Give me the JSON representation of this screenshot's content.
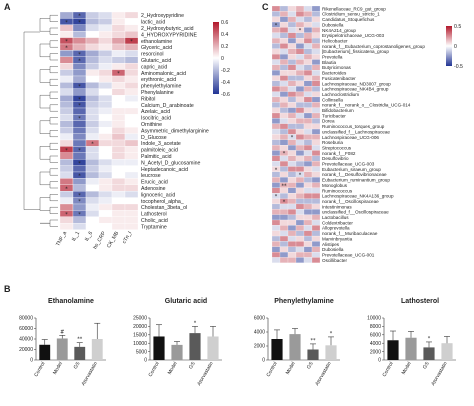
{
  "panels": {
    "a": "A",
    "b": "B",
    "c": "C"
  },
  "panel_a": {
    "rows": [
      "2_Hydroxypyridine",
      "lactic_acid",
      "2_Hydroxybutyric_acid",
      "4_HYDROXYPYRIDINE",
      "ethanolamine",
      "Glyceric_acid",
      "resorcinol",
      "Glutaric_acid",
      "capric_acid",
      "Aminomalonic_acid",
      "erythronic_acid",
      "phenylethylamine",
      "Phenylalanine",
      "Ribitol",
      "Calcium_D_arabinoate",
      "Azelaic_acid",
      "Isocitric_acid",
      "Ornithine",
      "Asymmetric_dimethylarginine",
      "D_Glucose",
      "Indole_3_acetate",
      "palmitoleic_acid",
      "Palmitic_acid",
      "N_Acetyl_D_glucosamine",
      "Heptadecanoic_acid",
      "leucrose",
      "Erucic_acid",
      "Adenosine",
      "lignoceric_acid",
      "tocopherol_alpha_",
      "Cholestan_3beta_ol",
      "Lathosterol",
      "Cholic_acid",
      "Tryptamine"
    ],
    "cols": [
      "TNF_a",
      "IL_1",
      "IL_6",
      "hs_CRP",
      "CK_MB",
      "cTn_I"
    ],
    "colorbar_ticks": [
      "0.6",
      "0.4",
      "0.2",
      "0",
      "-0.2",
      "-0.4",
      "-0.6"
    ],
    "values": [
      [
        -0.25,
        -0.45,
        -0.15,
        -0.1,
        0.05,
        0.1
      ],
      [
        -0.5,
        -0.55,
        -0.2,
        -0.15,
        0.05,
        0.0
      ],
      [
        0.15,
        -0.35,
        -0.1,
        -0.05,
        0.1,
        0.05
      ],
      [
        0.05,
        -0.2,
        0.0,
        0.05,
        0.1,
        0.15
      ],
      [
        0.45,
        0.3,
        0.2,
        0.1,
        0.25,
        0.5
      ],
      [
        0.35,
        0.2,
        0.1,
        0.05,
        0.15,
        0.2
      ],
      [
        -0.3,
        -0.45,
        -0.25,
        -0.15,
        -0.05,
        -0.1
      ],
      [
        0.3,
        -0.45,
        -0.2,
        -0.1,
        -0.15,
        -0.2
      ],
      [
        0.1,
        -0.35,
        -0.15,
        -0.05,
        0.05,
        0.1
      ],
      [
        -0.15,
        -0.3,
        0.05,
        0.1,
        0.4,
        0.1
      ],
      [
        -0.05,
        -0.25,
        0.0,
        0.05,
        0.1,
        0.05
      ],
      [
        -0.2,
        -0.5,
        -0.2,
        -0.1,
        0.05,
        0.1
      ],
      [
        -0.1,
        -0.3,
        -0.1,
        0.0,
        0.1,
        0.05
      ],
      [
        -0.25,
        -0.55,
        -0.2,
        -0.1,
        0.0,
        -0.05
      ],
      [
        -0.2,
        -0.5,
        -0.15,
        -0.1,
        0.0,
        0.0
      ],
      [
        -0.15,
        -0.45,
        -0.1,
        -0.05,
        0.05,
        0.05
      ],
      [
        -0.1,
        -0.4,
        -0.1,
        0.0,
        0.05,
        0.0
      ],
      [
        -0.2,
        -0.45,
        -0.15,
        -0.05,
        0.05,
        0.0
      ],
      [
        -0.15,
        -0.4,
        -0.1,
        0.0,
        0.1,
        0.05
      ],
      [
        -0.05,
        -0.35,
        -0.05,
        0.05,
        0.15,
        -0.05
      ],
      [
        0.1,
        -0.4,
        0.35,
        0.1,
        0.1,
        0.15
      ],
      [
        0.5,
        -0.45,
        -0.1,
        0.0,
        0.1,
        0.05
      ],
      [
        0.3,
        -0.4,
        -0.1,
        0.0,
        0.1,
        0.05
      ],
      [
        -0.2,
        -0.55,
        -0.2,
        -0.1,
        -0.05,
        -0.05
      ],
      [
        -0.15,
        -0.45,
        -0.15,
        -0.05,
        0.0,
        0.0
      ],
      [
        -0.1,
        -0.5,
        -0.2,
        -0.1,
        0.0,
        -0.05
      ],
      [
        0.35,
        -0.3,
        -0.05,
        0.05,
        0.1,
        0.05
      ],
      [
        0.4,
        -0.2,
        0.0,
        0.05,
        0.1,
        0.1
      ],
      [
        -0.15,
        -0.45,
        -0.2,
        -0.1,
        -0.05,
        -0.1
      ],
      [
        -0.05,
        -0.35,
        -0.1,
        -0.05,
        0.0,
        0.0
      ],
      [
        0.3,
        -0.3,
        -0.05,
        0.05,
        0.1,
        0.1
      ],
      [
        0.4,
        -0.4,
        -0.1,
        0.0,
        0.05,
        0.05
      ],
      [
        0.1,
        -0.2,
        0.0,
        0.05,
        0.05,
        0.05
      ],
      [
        0.05,
        -0.1,
        0.0,
        0.0,
        0.05,
        0.05
      ]
    ],
    "stars": [
      [
        0,
        1,
        "*"
      ],
      [
        1,
        0,
        "*"
      ],
      [
        1,
        1,
        "*"
      ],
      [
        4,
        0,
        "*"
      ],
      [
        4,
        5,
        "*"
      ],
      [
        5,
        0,
        "*"
      ],
      [
        6,
        1,
        "*"
      ],
      [
        7,
        1,
        "*"
      ],
      [
        9,
        4,
        "*"
      ],
      [
        11,
        1,
        "*"
      ],
      [
        13,
        1,
        "*"
      ],
      [
        14,
        1,
        "*"
      ],
      [
        16,
        1,
        "*"
      ],
      [
        20,
        2,
        "*"
      ],
      [
        21,
        0,
        "*"
      ],
      [
        21,
        1,
        "*"
      ],
      [
        23,
        1,
        "*"
      ],
      [
        25,
        1,
        "*"
      ],
      [
        27,
        0,
        "*"
      ],
      [
        28,
        1,
        "*"
      ],
      [
        29,
        1,
        "*"
      ],
      [
        31,
        0,
        "*"
      ],
      [
        31,
        1,
        "*"
      ]
    ]
  },
  "panel_c": {
    "rows": [
      "Rikenellaceae_RC9_gut_group",
      "Clostridium_sensu_stricto_1",
      "Candidatus_Stoquefichus",
      "Dubosiella",
      "NK4A214_group",
      "Erysipelotrichaceae_UCG-003",
      "Helicobacter",
      "norank_f__Eubacterium_coprostanoligenes_group",
      "[Eubacterium]_fissicatena_group",
      "Prevotella",
      "Blautia",
      "Butyricimonas",
      "Bacteroides",
      "Fusicatenibacter",
      "Lachnospiraceae_ND3007_group",
      "Lachnospiraceae_NK4B4_group",
      "Lachnoclostridium",
      "Collinsella",
      "norank_f__norank_o__Clostridia_UCG-014",
      "Bifidobacterium",
      "Turicibacter",
      "Dorea",
      "Ruminococcus_torques_group",
      "unclassified_f__Lachnospiraceae",
      "Lachnospiraceae_UCG-006",
      "Roseburia",
      "Streptococcus",
      "norank_f__F082",
      "Desulfovibrio",
      "Prevotellaceae_UCG-003",
      "Eubacterium_siraeum_group",
      "norank_f__Desulfovibrionaceae",
      "Eubacterium_ruminantium_group",
      "Monoglobus",
      "Ruminococcus",
      "Lachnospiraceae_NK4A136_group",
      "norank_f__Oscillospiraceae",
      "Intestinimonas",
      "unclassified_f__Oscillospiraceae",
      "Lactobacillus",
      "Coldextribacter",
      "Alloprevotella",
      "norank_f__Muribaculaceae",
      "Marvinbryantia",
      "Alistipes",
      "Dubosiella",
      "Prevotellaceae_UCG-001",
      "Oscillibacter"
    ],
    "colorbar_ticks": [
      "0.5",
      "0",
      "-0.5"
    ],
    "values": [
      [
        0.3,
        -0.2,
        0.1,
        0.2,
        -0.1,
        -0.3
      ],
      [
        -0.2,
        0.2,
        -0.1,
        0.3,
        0.2,
        -0.2
      ],
      [
        0.1,
        -0.3,
        0.2,
        -0.1,
        -0.2,
        0.1
      ],
      [
        -0.3,
        0.1,
        -0.2,
        0.2,
        0.1,
        -0.1
      ],
      [
        0.2,
        0.3,
        -0.1,
        0.1,
        -0.3,
        0.2
      ],
      [
        -0.1,
        -0.2,
        0.3,
        -0.2,
        0.2,
        0.1
      ],
      [
        0.2,
        0.1,
        -0.3,
        0.1,
        0.3,
        -0.2
      ],
      [
        -0.2,
        0.3,
        0.1,
        -0.3,
        -0.1,
        0.2
      ],
      [
        0.1,
        -0.1,
        0.2,
        0.3,
        -0.2,
        -0.1
      ],
      [
        0.3,
        -0.3,
        0.1,
        -0.1,
        0.2,
        0.1
      ],
      [
        -0.1,
        0.2,
        -0.2,
        0.2,
        0.1,
        -0.3
      ],
      [
        0.2,
        -0.2,
        0.3,
        -0.1,
        -0.2,
        0.2
      ],
      [
        -0.3,
        0.1,
        0.1,
        0.2,
        0.3,
        -0.1
      ],
      [
        0.1,
        0.3,
        -0.2,
        -0.2,
        0.1,
        0.2
      ],
      [
        -0.2,
        -0.1,
        0.2,
        0.1,
        -0.3,
        0.3
      ],
      [
        0.3,
        0.2,
        -0.1,
        -0.3,
        0.2,
        -0.2
      ],
      [
        -0.1,
        -0.3,
        0.3,
        0.2,
        -0.1,
        0.1
      ],
      [
        0.2,
        0.1,
        -0.2,
        0.1,
        0.3,
        -0.3
      ],
      [
        -0.2,
        0.2,
        0.1,
        -0.2,
        -0.2,
        0.2
      ],
      [
        0.1,
        -0.2,
        -0.3,
        0.3,
        0.1,
        -0.1
      ],
      [
        0.3,
        0.1,
        0.2,
        -0.1,
        -0.3,
        0.2
      ],
      [
        -0.3,
        -0.1,
        0.1,
        0.2,
        0.2,
        -0.2
      ],
      [
        0.2,
        0.3,
        -0.2,
        -0.2,
        0.1,
        0.1
      ],
      [
        -0.1,
        -0.2,
        0.3,
        0.1,
        -0.1,
        -0.3
      ],
      [
        0.1,
        0.2,
        -0.1,
        0.3,
        0.2,
        0.2
      ],
      [
        -0.2,
        -0.3,
        0.2,
        -0.1,
        -0.2,
        0.1
      ],
      [
        0.2,
        0.1,
        -0.3,
        0.2,
        0.3,
        -0.1
      ],
      [
        -0.3,
        0.2,
        0.1,
        -0.3,
        -0.1,
        0.3
      ],
      [
        0.3,
        -0.1,
        0.2,
        0.1,
        0.2,
        -0.2
      ],
      [
        -0.1,
        0.3,
        -0.1,
        -0.2,
        -0.3,
        0.2
      ],
      [
        0.1,
        -0.2,
        0.3,
        0.3,
        0.1,
        -0.1
      ],
      [
        -0.2,
        0.1,
        -0.2,
        -0.1,
        0.2,
        0.1
      ],
      [
        0.2,
        -0.3,
        0.1,
        0.2,
        -0.2,
        -0.3
      ],
      [
        -0.3,
        0.2,
        0.2,
        -0.3,
        0.1,
        0.2
      ],
      [
        0.3,
        0.1,
        -0.3,
        0.1,
        -0.1,
        -0.1
      ],
      [
        -0.1,
        -0.2,
        0.1,
        0.2,
        0.3,
        0.3
      ],
      [
        0.1,
        0.3,
        0.2,
        -0.2,
        -0.2,
        -0.2
      ],
      [
        -0.2,
        -0.1,
        -0.1,
        0.3,
        0.2,
        0.1
      ],
      [
        0.2,
        0.2,
        0.3,
        -0.1,
        -0.3,
        -0.3
      ],
      [
        -0.3,
        -0.3,
        -0.2,
        0.1,
        0.1,
        0.2
      ],
      [
        0.3,
        0.1,
        0.1,
        -0.3,
        0.2,
        -0.1
      ],
      [
        -0.1,
        0.2,
        -0.3,
        0.2,
        -0.1,
        0.3
      ],
      [
        0.1,
        -0.1,
        0.2,
        -0.2,
        0.3,
        -0.2
      ],
      [
        -0.2,
        0.3,
        -0.1,
        0.1,
        -0.2,
        0.1
      ],
      [
        0.2,
        -0.2,
        0.3,
        0.3,
        0.1,
        -0.3
      ],
      [
        -0.3,
        0.1,
        -0.2,
        -0.1,
        -0.3,
        0.2
      ],
      [
        0.3,
        -0.3,
        0.1,
        0.2,
        0.2,
        -0.1
      ],
      [
        -0.1,
        0.2,
        0.2,
        -0.3,
        -0.1,
        0.3
      ]
    ],
    "stars": [
      [
        3,
        0,
        "*"
      ],
      [
        4,
        3,
        "*"
      ],
      [
        24,
        2,
        "*"
      ],
      [
        27,
        1,
        "*"
      ],
      [
        30,
        0,
        "*"
      ],
      [
        31,
        3,
        "*"
      ],
      [
        33,
        1,
        "**"
      ],
      [
        35,
        0,
        "*"
      ],
      [
        36,
        1,
        "*"
      ]
    ]
  },
  "panel_b_common": {
    "groups": [
      "Control",
      "Model",
      "GS",
      "Atorvastatin"
    ],
    "colors": [
      "#111111",
      "#9a9a9a",
      "#5a5a5a",
      "#cfcfcf"
    ]
  },
  "chart_data": [
    {
      "type": "bar",
      "title": "Ethanolamine",
      "categories": [
        "Control",
        "Model",
        "GS",
        "Atorvastatin"
      ],
      "values": [
        29000,
        41000,
        25000,
        40000
      ],
      "errors": [
        10000,
        6000,
        8000,
        30000
      ],
      "ylim": [
        0,
        80000
      ],
      "yticks": [
        "0",
        "20000",
        "40000",
        "60000",
        "80000"
      ],
      "annotations": [
        "",
        "#",
        "**",
        ""
      ]
    },
    {
      "type": "bar",
      "title": "Glutaric acid",
      "categories": [
        "Control",
        "Model",
        "GS",
        "Atorvastatin"
      ],
      "values": [
        14000,
        9000,
        16000,
        14000
      ],
      "errors": [
        7000,
        2000,
        4000,
        6000
      ],
      "ylim": [
        0,
        25000
      ],
      "yticks": [
        "0",
        "5000",
        "10000",
        "15000",
        "20000",
        "25000"
      ],
      "annotations": [
        "",
        "",
        "*",
        ""
      ]
    },
    {
      "type": "bar",
      "title": "Phenylethylamine",
      "categories": [
        "Control",
        "Model",
        "GS",
        "Atorvastatin"
      ],
      "values": [
        3000,
        3700,
        1500,
        2100
      ],
      "errors": [
        1300,
        800,
        800,
        1200
      ],
      "ylim": [
        0,
        6000
      ],
      "yticks": [
        "0",
        "2000",
        "4000",
        "6000"
      ],
      "annotations": [
        "",
        "",
        "**",
        "*"
      ]
    },
    {
      "type": "bar",
      "title": "Lathosterol",
      "categories": [
        "Control",
        "Model",
        "GS",
        "Atorvastatin"
      ],
      "values": [
        4700,
        5300,
        3000,
        4000
      ],
      "errors": [
        2200,
        1500,
        1300,
        1600
      ],
      "ylim": [
        0,
        10000
      ],
      "yticks": [
        "0",
        "2000",
        "4000",
        "6000",
        "8000",
        "10000"
      ],
      "annotations": [
        "",
        "",
        "*",
        ""
      ]
    }
  ]
}
